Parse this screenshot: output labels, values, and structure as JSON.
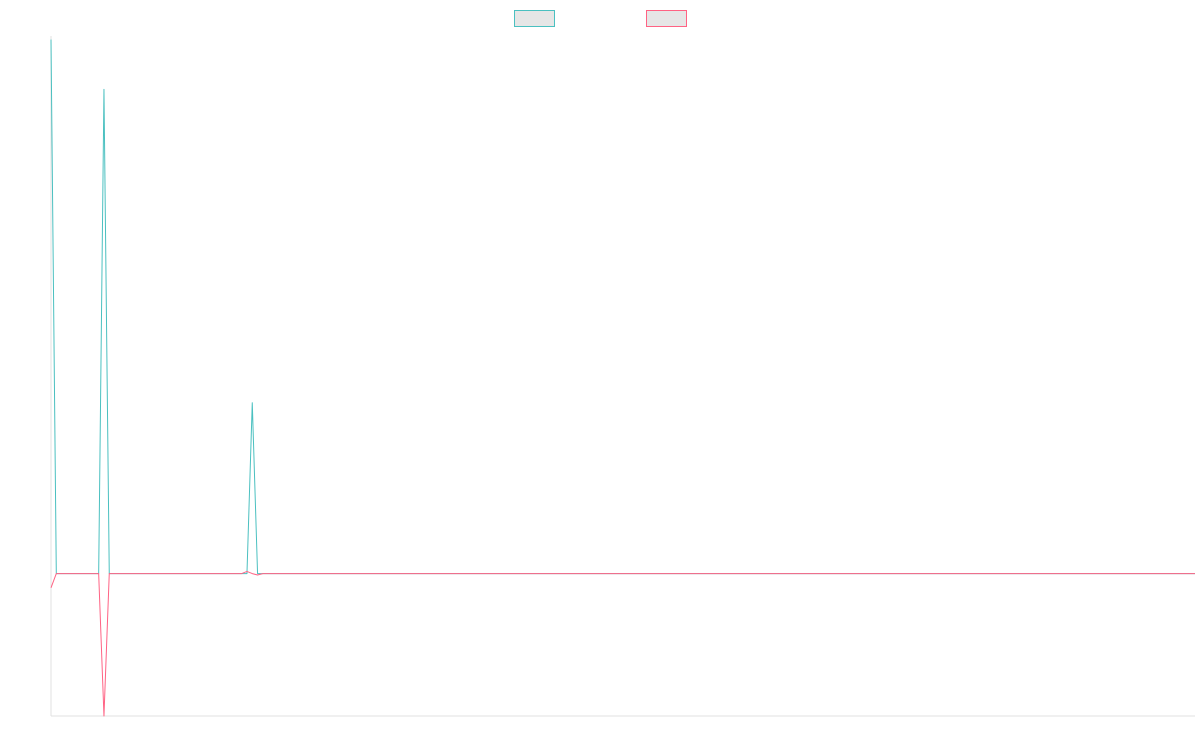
{
  "chart_data": {
    "type": "line",
    "title": "",
    "xlabel": "",
    "ylabel": "",
    "legend_position": "top-center",
    "grid": false,
    "x": [
      0,
      1,
      2,
      3,
      4,
      5,
      6,
      7,
      8,
      9,
      10,
      11,
      12,
      13,
      14,
      15,
      16,
      17,
      18,
      19,
      20,
      21,
      22,
      23,
      24,
      25,
      26,
      27,
      28,
      29,
      30,
      31,
      32,
      33,
      34,
      35,
      36,
      37,
      38,
      39,
      40,
      41,
      42,
      43,
      44,
      45,
      46,
      47,
      48,
      49,
      50,
      51,
      52,
      53,
      54,
      55,
      56,
      57,
      58,
      59,
      60,
      61,
      62,
      63,
      64,
      65,
      66,
      67,
      68,
      69,
      70,
      71,
      72,
      73,
      74,
      75,
      76,
      77,
      78,
      79,
      80,
      81,
      82,
      83,
      84,
      85,
      86,
      87,
      88,
      89,
      90,
      91,
      92,
      93,
      94,
      95,
      96,
      97,
      98,
      99,
      100,
      101,
      102,
      103,
      104,
      105,
      106,
      107,
      108,
      109,
      110,
      111,
      112,
      113,
      114,
      115,
      116,
      117,
      118,
      119,
      120,
      121,
      122,
      123,
      124,
      125,
      126,
      127,
      128,
      129,
      130,
      131,
      132,
      133,
      134,
      135,
      136,
      137,
      138,
      139,
      140,
      141,
      142,
      143,
      144,
      145,
      146,
      147,
      148,
      149,
      150,
      151,
      152,
      153,
      154,
      155,
      156,
      157,
      158,
      159,
      160,
      161,
      162,
      163,
      164,
      165,
      166,
      167,
      168,
      169,
      170,
      171,
      172,
      173,
      174,
      175,
      176,
      177,
      178,
      179,
      180,
      181,
      182,
      183,
      184,
      185,
      186,
      187,
      188,
      189,
      190,
      191,
      192,
      193,
      194,
      195,
      196,
      197,
      198,
      199,
      200,
      201,
      202,
      203,
      204,
      205,
      206,
      207,
      208,
      209,
      210,
      211,
      212,
      213,
      214,
      215,
      216
    ],
    "xlim": [
      0,
      216
    ],
    "ylim": [
      -2.0,
      7.55
    ],
    "series": [
      {
        "color": "#4bc0c0",
        "values": [
          7.5,
          0,
          0,
          0,
          0,
          0,
          0,
          0,
          0,
          0,
          6.8,
          0,
          0,
          0,
          0,
          0,
          0,
          0,
          0,
          0,
          0,
          0,
          0,
          0,
          0,
          0,
          0,
          0,
          0,
          0,
          0,
          0,
          0,
          0,
          0,
          0,
          0,
          0,
          2.4,
          0,
          0,
          0,
          0,
          0,
          0,
          0,
          0,
          0,
          0,
          0,
          0,
          0,
          0,
          0,
          0,
          0,
          0,
          0,
          0,
          0,
          0,
          0,
          0,
          0,
          0,
          0,
          0,
          0,
          0,
          0,
          0,
          0,
          0,
          0,
          0,
          0,
          0,
          0,
          0,
          0,
          0,
          0,
          0,
          0,
          0,
          0,
          0,
          0,
          0,
          0,
          0,
          0,
          0,
          0,
          0,
          0,
          0,
          0,
          0,
          0,
          0,
          0,
          0,
          0,
          0,
          0,
          0,
          0,
          0,
          0,
          0,
          0,
          0,
          0,
          0,
          0,
          0,
          0,
          0,
          0,
          0,
          0,
          0,
          0,
          0,
          0,
          0,
          0,
          0,
          0,
          0,
          0,
          0,
          0,
          0,
          0,
          0,
          0,
          0,
          0,
          0,
          0,
          0,
          0,
          0,
          0,
          0,
          0,
          0,
          0,
          0,
          0,
          0,
          0,
          0,
          0,
          0,
          0,
          0,
          0,
          0,
          0,
          0,
          0,
          0,
          0,
          0,
          0,
          0,
          0,
          0,
          0,
          0,
          0,
          0,
          0,
          0,
          0,
          0,
          0,
          0,
          0,
          0,
          0,
          0,
          0,
          0,
          0,
          0,
          0,
          0,
          0,
          0,
          0,
          0,
          0,
          0,
          0,
          0,
          0,
          0,
          0,
          0,
          0,
          0,
          0,
          0,
          0,
          0,
          0,
          0,
          0,
          0,
          0,
          0,
          0,
          0
        ]
      },
      {
        "color": "#ff6384",
        "values": [
          -0.2,
          0,
          0,
          0,
          0,
          0,
          0,
          0,
          0,
          0,
          -2.0,
          0,
          0,
          0,
          0,
          0,
          0,
          0,
          0,
          0,
          0,
          0,
          0,
          0,
          0,
          0,
          0,
          0,
          0,
          0,
          0,
          0,
          0,
          0,
          0,
          0,
          0,
          0.03,
          0,
          -0.02,
          0,
          0,
          0,
          0,
          0,
          0,
          0,
          0,
          0,
          0,
          0,
          0,
          0,
          0,
          0,
          0,
          0,
          0,
          0,
          0,
          0,
          0,
          0,
          0,
          0,
          0,
          0,
          0,
          0,
          0,
          0,
          0,
          0,
          0,
          0,
          0,
          0,
          0,
          0,
          0,
          0,
          0,
          0,
          0,
          0,
          0,
          0,
          0,
          0,
          0,
          0,
          0,
          0,
          0,
          0,
          0,
          0,
          0,
          0,
          0,
          0,
          0,
          0,
          0,
          0,
          0,
          0,
          0,
          0,
          0,
          0,
          0,
          0,
          0,
          0,
          0,
          0,
          0,
          0,
          0,
          0,
          0,
          0,
          0,
          0,
          0,
          0,
          0,
          0,
          0,
          0,
          0,
          0,
          0,
          0,
          0,
          0,
          0,
          0,
          0,
          0,
          0,
          0,
          0,
          0,
          0,
          0,
          0,
          0,
          0,
          0,
          0,
          0,
          0,
          0,
          0,
          0,
          0,
          0,
          0,
          0,
          0,
          0,
          0,
          0,
          0,
          0,
          0,
          0,
          0,
          0,
          0,
          0,
          0,
          0,
          0,
          0,
          0,
          0,
          0,
          0,
          0,
          0,
          0,
          0,
          0,
          0,
          0,
          0,
          0,
          0,
          0,
          0,
          0,
          0,
          0,
          0,
          0,
          0,
          0,
          0,
          0,
          0,
          0,
          0,
          0,
          0,
          0,
          0,
          0,
          0,
          0,
          0,
          0,
          0,
          0,
          0
        ]
      }
    ]
  }
}
